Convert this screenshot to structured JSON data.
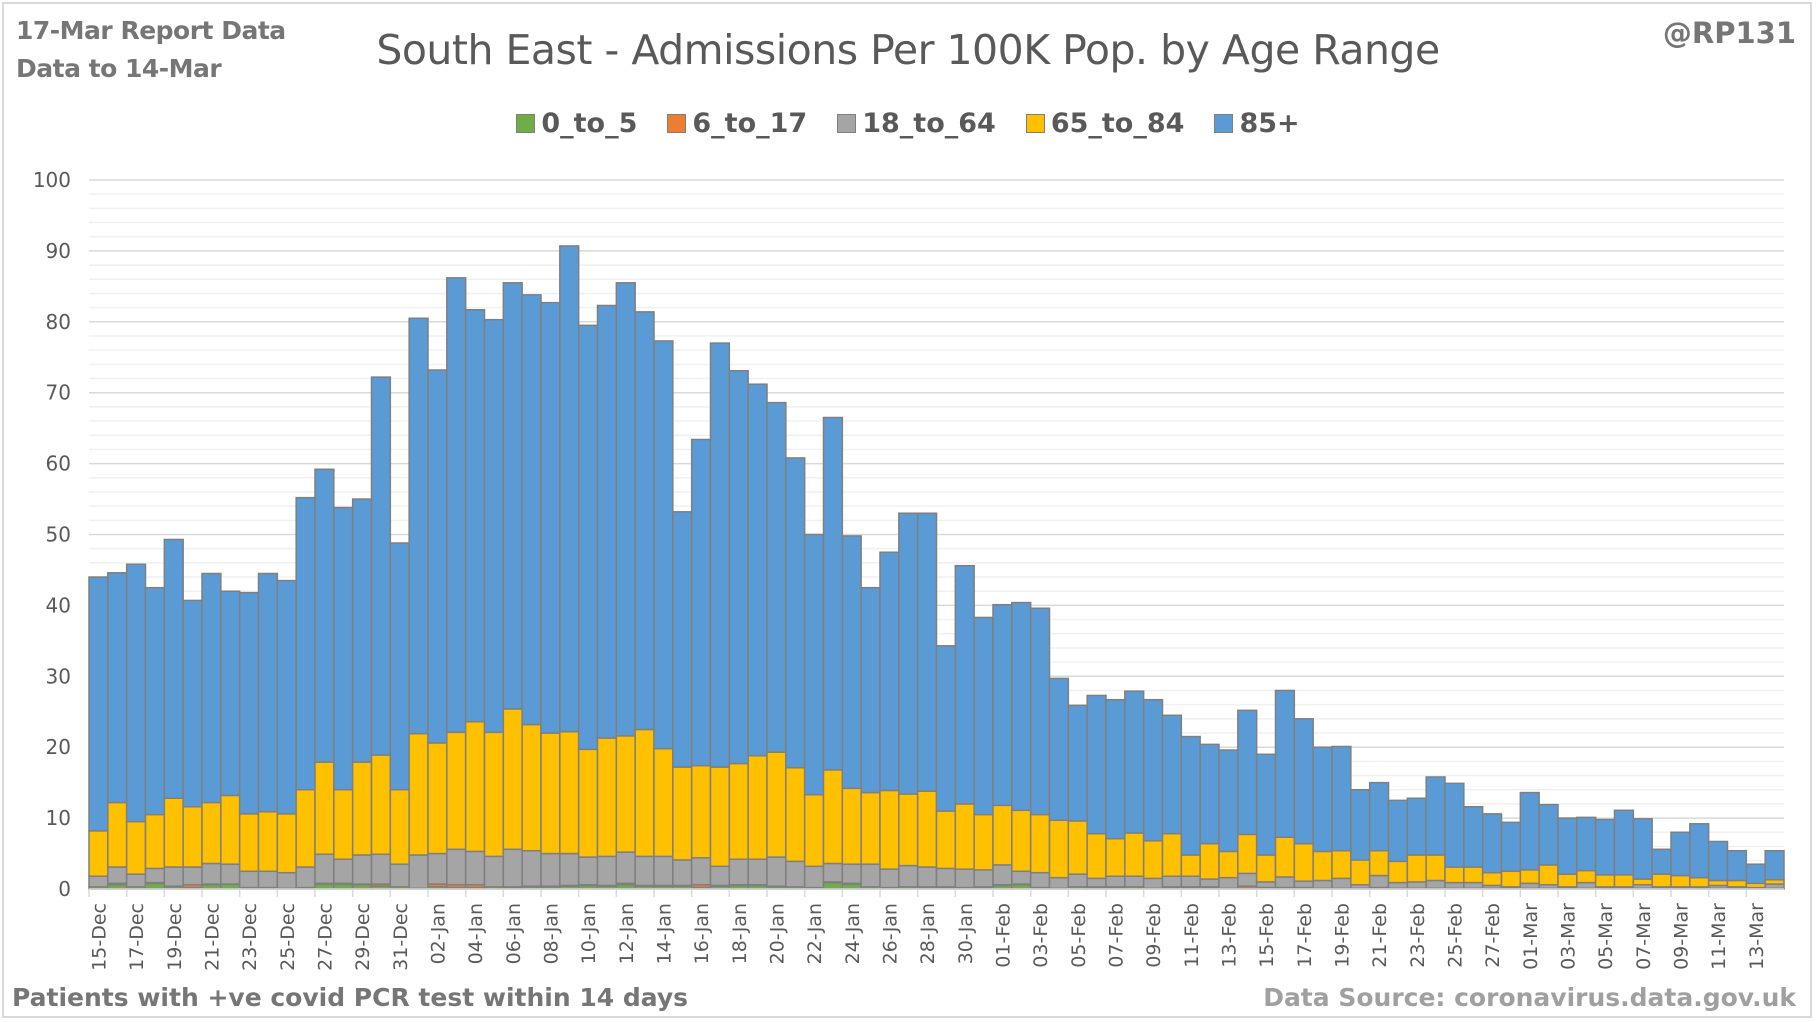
{
  "header": {
    "report_line1": "17-Mar Report Data",
    "report_line2": "Data to 14-Mar",
    "handle": "@RP131"
  },
  "footer": {
    "note": "Patients with  +ve covid PCR test within 14 days",
    "source": "Data Source: coronavirus.data.gov.uk"
  },
  "chart_data": {
    "type": "bar",
    "stacked": true,
    "title": "South East - Admissions Per 100K Pop. by Age Range",
    "xlabel": "",
    "ylabel": "",
    "ylim": [
      0,
      100
    ],
    "yticks": [
      0,
      10,
      20,
      30,
      40,
      50,
      60,
      70,
      80,
      90,
      100
    ],
    "grid": true,
    "legend_position": "top",
    "categories": [
      "15-Dec",
      "16-Dec",
      "17-Dec",
      "18-Dec",
      "19-Dec",
      "20-Dec",
      "21-Dec",
      "22-Dec",
      "23-Dec",
      "24-Dec",
      "25-Dec",
      "26-Dec",
      "27-Dec",
      "28-Dec",
      "29-Dec",
      "30-Dec",
      "31-Dec",
      "01-Jan",
      "02-Jan",
      "03-Jan",
      "04-Jan",
      "05-Jan",
      "06-Jan",
      "07-Jan",
      "08-Jan",
      "09-Jan",
      "10-Jan",
      "11-Jan",
      "12-Jan",
      "13-Jan",
      "14-Jan",
      "15-Jan",
      "16-Jan",
      "17-Jan",
      "18-Jan",
      "19-Jan",
      "20-Jan",
      "21-Jan",
      "22-Jan",
      "23-Jan",
      "24-Jan",
      "25-Jan",
      "26-Jan",
      "27-Jan",
      "28-Jan",
      "29-Jan",
      "30-Jan",
      "31-Jan",
      "01-Feb",
      "02-Feb",
      "03-Feb",
      "04-Feb",
      "05-Feb",
      "06-Feb",
      "07-Feb",
      "08-Feb",
      "09-Feb",
      "10-Feb",
      "11-Feb",
      "12-Feb",
      "13-Feb",
      "14-Feb",
      "15-Feb",
      "16-Feb",
      "17-Feb",
      "18-Feb",
      "19-Feb",
      "20-Feb",
      "21-Feb",
      "22-Feb",
      "23-Feb",
      "24-Feb",
      "25-Feb",
      "26-Feb",
      "27-Feb",
      "28-Feb",
      "01-Mar",
      "02-Mar",
      "03-Mar",
      "04-Mar",
      "05-Mar",
      "06-Mar",
      "07-Mar",
      "08-Mar",
      "09-Mar",
      "10-Mar",
      "11-Mar",
      "12-Mar",
      "13-Mar",
      "14-Mar"
    ],
    "tick_labels": [
      "15-Dec",
      "17-Dec",
      "19-Dec",
      "21-Dec",
      "23-Dec",
      "25-Dec",
      "27-Dec",
      "29-Dec",
      "31-Dec",
      "02-Jan",
      "04-Jan",
      "06-Jan",
      "08-Jan",
      "10-Jan",
      "12-Jan",
      "14-Jan",
      "16-Jan",
      "18-Jan",
      "20-Jan",
      "22-Jan",
      "24-Jan",
      "26-Jan",
      "28-Jan",
      "30-Jan",
      "01-Feb",
      "03-Feb",
      "05-Feb",
      "07-Feb",
      "09-Feb",
      "11-Feb",
      "13-Feb",
      "15-Feb",
      "17-Feb",
      "19-Feb",
      "21-Feb",
      "23-Feb",
      "25-Feb",
      "27-Feb",
      "01-Mar",
      "03-Mar",
      "05-Mar",
      "07-Mar",
      "09-Mar",
      "11-Mar",
      "13-Mar"
    ],
    "series": [
      {
        "name": "0_to_5",
        "color": "#70ad47",
        "values": [
          0.3,
          0.6,
          0.3,
          0.8,
          0.3,
          0.2,
          0.6,
          0.7,
          0.2,
          0.2,
          0.1,
          0.2,
          0.7,
          0.7,
          0.6,
          0.4,
          0.3,
          0.1,
          0.3,
          0.2,
          0.2,
          0.3,
          0.2,
          0.3,
          0.3,
          0.4,
          0.5,
          0.4,
          0.6,
          0.4,
          0.4,
          0.4,
          0.2,
          0.4,
          0.5,
          0.5,
          0.3,
          0.3,
          0.2,
          0.9,
          0.7,
          0.3,
          0.2,
          0.3,
          0.2,
          0.2,
          0.2,
          0.2,
          0.5,
          0.6,
          0.2,
          0.1,
          0.3,
          0.2,
          0.2,
          0.3,
          0.1,
          0.2,
          0.2,
          0.2,
          0.1,
          0.1,
          0.2,
          0.2,
          0.1,
          0.1,
          0.1,
          0.1,
          0.1,
          0.1,
          0.1,
          0.1,
          0.1,
          0.1,
          0.1,
          0.1,
          0.1,
          0.1,
          0.1,
          0.1,
          0.1,
          0.1,
          0.1,
          0.1,
          0.1,
          0.1,
          0.1,
          0.1,
          0.1,
          0.1
        ]
      },
      {
        "name": "6_to_17",
        "color": "#ed7d31",
        "values": [
          0.0,
          0.2,
          0.0,
          0.1,
          0.1,
          0.4,
          0.1,
          0.0,
          0.0,
          0.0,
          0.0,
          0.0,
          0.1,
          0.1,
          0.1,
          0.3,
          0.0,
          0.0,
          0.4,
          0.4,
          0.4,
          0.0,
          0.1,
          0.1,
          0.1,
          0.1,
          0.1,
          0.1,
          0.2,
          0.1,
          0.1,
          0.1,
          0.4,
          0.1,
          0.1,
          0.1,
          0.1,
          0.0,
          0.0,
          0.1,
          0.1,
          0.0,
          0.0,
          0.0,
          0.1,
          0.1,
          0.0,
          0.1,
          0.1,
          0.1,
          0.0,
          0.0,
          0.0,
          0.1,
          0.1,
          0.0,
          0.0,
          0.1,
          0.1,
          0.1,
          0.0,
          0.3,
          0.0,
          0.0,
          0.1,
          0.0,
          0.0,
          0.0,
          0.1,
          0.0,
          0.0,
          0.0,
          0.0,
          0.0,
          0.0,
          0.0,
          0.0,
          0.0,
          0.0,
          0.0,
          0.0,
          0.0,
          0.0,
          0.0,
          0.0,
          0.0,
          0.0,
          0.0,
          0.0,
          0.0
        ]
      },
      {
        "name": "18_to_64",
        "color": "#a5a5a5",
        "values": [
          1.5,
          2.3,
          1.8,
          2.0,
          2.7,
          2.5,
          2.9,
          2.8,
          2.3,
          2.3,
          2.2,
          2.9,
          4.1,
          3.4,
          4.1,
          4.2,
          3.2,
          4.7,
          4.3,
          5.0,
          4.7,
          4.3,
          5.3,
          5.0,
          4.6,
          4.5,
          3.9,
          4.1,
          4.4,
          4.1,
          4.1,
          3.6,
          3.8,
          2.7,
          3.6,
          3.6,
          4.1,
          3.6,
          3.0,
          2.6,
          2.7,
          3.2,
          2.6,
          3.0,
          2.8,
          2.6,
          2.6,
          2.4,
          2.8,
          1.8,
          2.1,
          1.5,
          1.8,
          1.2,
          1.5,
          1.5,
          1.4,
          1.5,
          1.5,
          1.1,
          1.5,
          1.8,
          0.8,
          1.5,
          0.9,
          1.1,
          1.4,
          0.5,
          1.7,
          0.8,
          0.9,
          1.1,
          0.8,
          0.8,
          0.4,
          0.2,
          0.7,
          0.5,
          0.2,
          0.8,
          0.2,
          0.2,
          0.5,
          0.2,
          0.2,
          0.2,
          0.4,
          0.2,
          0.1,
          0.6
        ]
      },
      {
        "name": "65_to_84",
        "color": "#ffc000",
        "values": [
          6.4,
          9.1,
          7.4,
          7.6,
          9.7,
          8.5,
          8.6,
          9.7,
          8.1,
          8.4,
          8.3,
          10.9,
          13.0,
          9.8,
          13.1,
          14.0,
          10.5,
          17.1,
          15.6,
          16.5,
          18.3,
          17.5,
          19.8,
          17.8,
          17.0,
          17.2,
          15.2,
          16.7,
          16.4,
          17.9,
          15.2,
          13.1,
          13.0,
          14.0,
          13.5,
          14.6,
          14.8,
          13.2,
          10.1,
          13.2,
          10.7,
          10.1,
          11.1,
          10.1,
          10.7,
          8.1,
          9.2,
          7.8,
          8.4,
          8.6,
          8.2,
          8.1,
          7.5,
          6.3,
          5.3,
          6.1,
          5.3,
          6.0,
          3.0,
          5.0,
          3.7,
          5.5,
          3.8,
          5.6,
          5.3,
          4.1,
          3.9,
          3.5,
          3.5,
          3.0,
          3.8,
          3.6,
          2.2,
          2.2,
          1.8,
          2.2,
          1.9,
          2.8,
          1.8,
          1.7,
          1.7,
          1.7,
          0.8,
          1.8,
          1.6,
          1.3,
          0.7,
          0.9,
          0.6,
          0.6
        ]
      },
      {
        "name": "85+",
        "color": "#5b9bd5",
        "values": [
          35.8,
          32.4,
          36.3,
          32.0,
          36.5,
          29.1,
          32.3,
          28.8,
          31.2,
          33.6,
          32.9,
          41.2,
          41.3,
          39.8,
          37.1,
          53.3,
          34.8,
          58.6,
          52.6,
          64.1,
          58.1,
          58.2,
          60.1,
          60.6,
          60.7,
          68.5,
          59.8,
          61.0,
          63.9,
          58.9,
          57.5,
          36.0,
          46.0,
          59.8,
          55.4,
          52.4,
          49.3,
          43.7,
          36.7,
          49.7,
          35.6,
          28.9,
          33.6,
          39.6,
          39.2,
          23.3,
          33.6,
          27.8,
          28.3,
          29.3,
          29.1,
          20.0,
          16.3,
          19.5,
          19.6,
          20.0,
          19.9,
          16.7,
          16.7,
          14.0,
          14.3,
          17.5,
          14.2,
          20.7,
          17.6,
          14.7,
          14.7,
          9.9,
          9.6,
          8.6,
          8.0,
          11.0,
          11.8,
          8.5,
          8.3,
          6.9,
          10.9,
          8.5,
          7.9,
          7.5,
          7.8,
          9.1,
          8.5,
          3.5,
          6.1,
          7.6,
          5.5,
          4.2,
          2.7,
          4.1
        ]
      }
    ]
  }
}
